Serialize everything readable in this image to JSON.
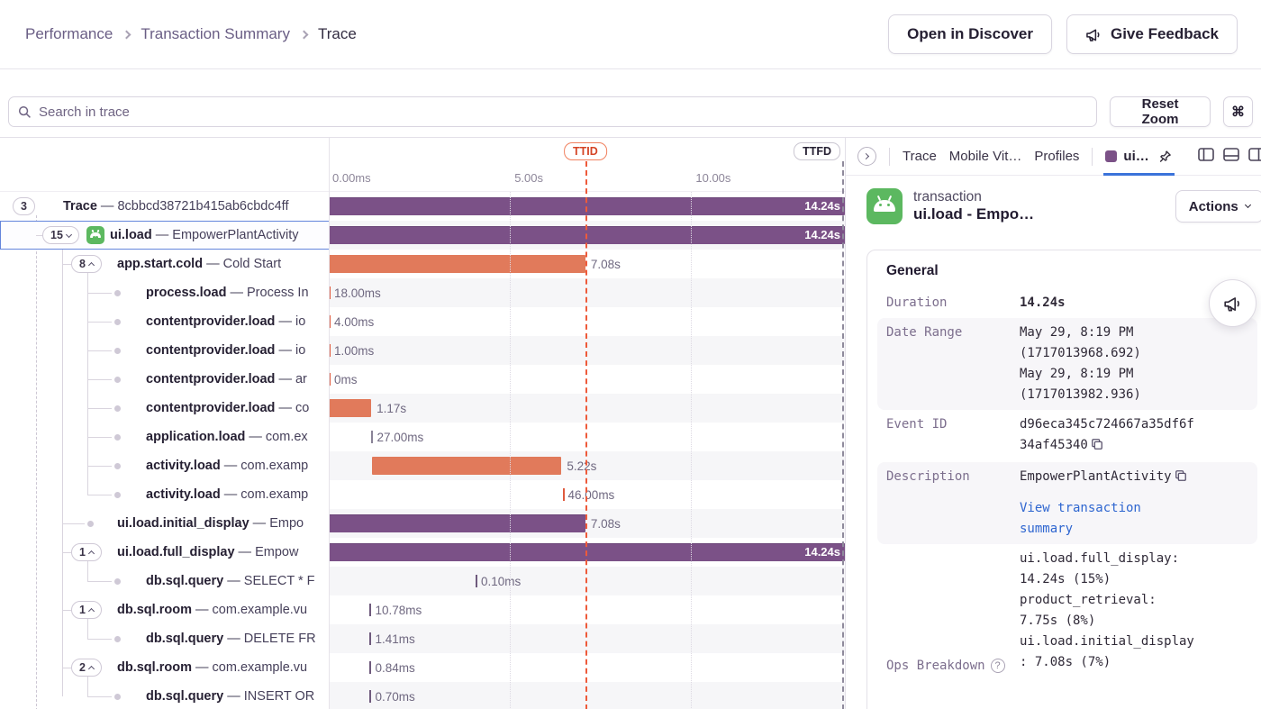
{
  "breadcrumb": {
    "items": [
      "Performance",
      "Transaction Summary",
      "Trace"
    ]
  },
  "header": {
    "open_in_discover": "Open in Discover",
    "give_feedback": "Give Feedback"
  },
  "toolbar": {
    "search_placeholder": "Search in trace",
    "reset_zoom": "Reset Zoom",
    "shortcut_key": "⌘"
  },
  "colors": {
    "purple_bar": "#7b5187",
    "orange_bar": "#e17a5b",
    "ttid_red": "#ee5a3a",
    "selected_blue": "#6485dc",
    "tab_underline": "#3b73da",
    "android_green": "#5cb860",
    "link_blue": "#2f66d0"
  },
  "chart_data": {
    "type": "waterfall-trace",
    "total_duration_s": 14.24,
    "axis_ticks": [
      {
        "label": "0.00ms",
        "s": 0
      },
      {
        "label": "5.00s",
        "s": 5
      },
      {
        "label": "10.00s",
        "s": 10
      }
    ],
    "markers": [
      {
        "label": "TTID",
        "s": 7.08,
        "color": "red"
      },
      {
        "label": "TTFD",
        "s": 14.24,
        "color": "gray"
      }
    ],
    "rows": [
      {
        "level": 0,
        "badge": "3",
        "chevron": null,
        "op": "Trace",
        "desc": "8cbbcd38721b415ab6cbdc4ff",
        "bar": {
          "kind": "bar",
          "color": "purple",
          "start_s": 0,
          "dur_s": 14.24,
          "label": "14.24s",
          "inside": true
        }
      },
      {
        "level": 1,
        "badge": "15",
        "chevron": "down",
        "icon": "android",
        "selected": true,
        "op": "ui.load",
        "desc": "EmpowerPlantActivity",
        "bar": {
          "kind": "bar",
          "color": "purple",
          "start_s": 0,
          "dur_s": 14.24,
          "label": "14.24s",
          "inside": true
        }
      },
      {
        "level": 2,
        "badge": "8",
        "chevron": "up",
        "op": "app.start.cold",
        "desc": "Cold Start",
        "bar": {
          "kind": "bar",
          "color": "orange",
          "start_s": 0,
          "dur_s": 7.08,
          "label": "7.08s"
        }
      },
      {
        "level": 3,
        "dot": true,
        "op": "process.load",
        "desc": "Process In",
        "bar": {
          "kind": "tick",
          "color": "red",
          "start_s": 0,
          "label": "18.00ms"
        }
      },
      {
        "level": 3,
        "dot": true,
        "op": "contentprovider.load",
        "desc": "io",
        "bar": {
          "kind": "tick",
          "color": "red",
          "start_s": 0,
          "label": "4.00ms"
        }
      },
      {
        "level": 3,
        "dot": true,
        "op": "contentprovider.load",
        "desc": "io",
        "bar": {
          "kind": "tick",
          "color": "red",
          "start_s": 0,
          "label": "1.00ms"
        }
      },
      {
        "level": 3,
        "dot": true,
        "op": "contentprovider.load",
        "desc": "ar",
        "bar": {
          "kind": "tick",
          "color": "red",
          "start_s": 0,
          "label": "0ms"
        }
      },
      {
        "level": 3,
        "dot": true,
        "op": "contentprovider.load",
        "desc": "co",
        "bar": {
          "kind": "bar",
          "color": "orange",
          "start_s": 0,
          "dur_s": 1.17,
          "label": "1.17s"
        }
      },
      {
        "level": 3,
        "dot": true,
        "op": "application.load",
        "desc": "com.ex",
        "bar": {
          "kind": "tick",
          "color": "gray",
          "start_s": 1.18,
          "label": "27.00ms"
        }
      },
      {
        "level": 3,
        "dot": true,
        "op": "activity.load",
        "desc": "com.examp",
        "bar": {
          "kind": "bar",
          "color": "orange",
          "start_s": 1.2,
          "dur_s": 5.22,
          "label": "5.22s"
        }
      },
      {
        "level": 3,
        "dot": true,
        "op": "activity.load",
        "desc": "com.examp",
        "bar": {
          "kind": "tick",
          "color": "red",
          "start_s": 6.45,
          "label": "46.00ms"
        }
      },
      {
        "level": 2,
        "dot": true,
        "op": "ui.load.initial_display",
        "desc": "Empo",
        "bar": {
          "kind": "bar",
          "color": "purple",
          "start_s": 0,
          "dur_s": 7.08,
          "label": "7.08s"
        }
      },
      {
        "level": 2,
        "badge": "1",
        "chevron": "up",
        "op": "ui.load.full_display",
        "desc": "Empow",
        "bar": {
          "kind": "bar",
          "color": "purple",
          "start_s": 0,
          "dur_s": 14.24,
          "label": "14.24s",
          "inside": true
        }
      },
      {
        "level": 3,
        "dot": true,
        "op": "db.sql.query",
        "desc": "SELECT * F",
        "bar": {
          "kind": "tick",
          "color": "purple",
          "start_s": 4.05,
          "label": "0.10ms"
        }
      },
      {
        "level": 2,
        "badge": "1",
        "chevron": "up",
        "op": "db.sql.room",
        "desc": "com.example.vu",
        "bar": {
          "kind": "tick",
          "color": "purple",
          "start_s": 1.13,
          "label": "10.78ms"
        }
      },
      {
        "level": 3,
        "dot": true,
        "op": "db.sql.query",
        "desc": "DELETE FR",
        "bar": {
          "kind": "tick",
          "color": "purple",
          "start_s": 1.13,
          "label": "1.41ms"
        }
      },
      {
        "level": 2,
        "badge": "2",
        "chevron": "up",
        "op": "db.sql.room",
        "desc": "com.example.vu",
        "bar": {
          "kind": "tick",
          "color": "purple",
          "start_s": 1.13,
          "label": "0.84ms"
        }
      },
      {
        "level": 3,
        "dot": true,
        "op": "db.sql.query",
        "desc": "INSERT OR",
        "bar": {
          "kind": "tick",
          "color": "purple",
          "start_s": 1.13,
          "label": "0.70ms"
        }
      }
    ]
  },
  "panel": {
    "tabs": [
      "Trace",
      "Mobile Vit…",
      "Profiles"
    ],
    "active_tab": "ui…",
    "txn": {
      "type_label": "transaction",
      "title": "ui.load - Empo…",
      "actions_label": "Actions"
    },
    "general": {
      "section_title": "General",
      "help_glyph": "?",
      "fields": [
        {
          "label": "Duration",
          "lines": [
            "14.24s"
          ],
          "bold": true
        },
        {
          "label": "Date Range",
          "shaded": true,
          "lines": [
            "May 29, 8:19 PM (1717013968.692)",
            "May 29, 8:19 PM (1717013982.936)"
          ]
        },
        {
          "label": "Event ID",
          "lines": [
            "d96eca345c724667a35df6f34af45340"
          ],
          "copy": true
        },
        {
          "label": "Description",
          "shaded": true,
          "lines": [
            "EmpowerPlantActivity"
          ],
          "copy": true,
          "link": "View transaction summary"
        },
        {
          "label": "Ops Breakdown",
          "help": true,
          "ops": true,
          "lines": [
            "ui.load.full_display: 14.24s (15%)",
            "product_retrieval: 7.75s (8%)",
            "ui.load.initial_display: 7.08s (7%)"
          ]
        }
      ]
    }
  }
}
